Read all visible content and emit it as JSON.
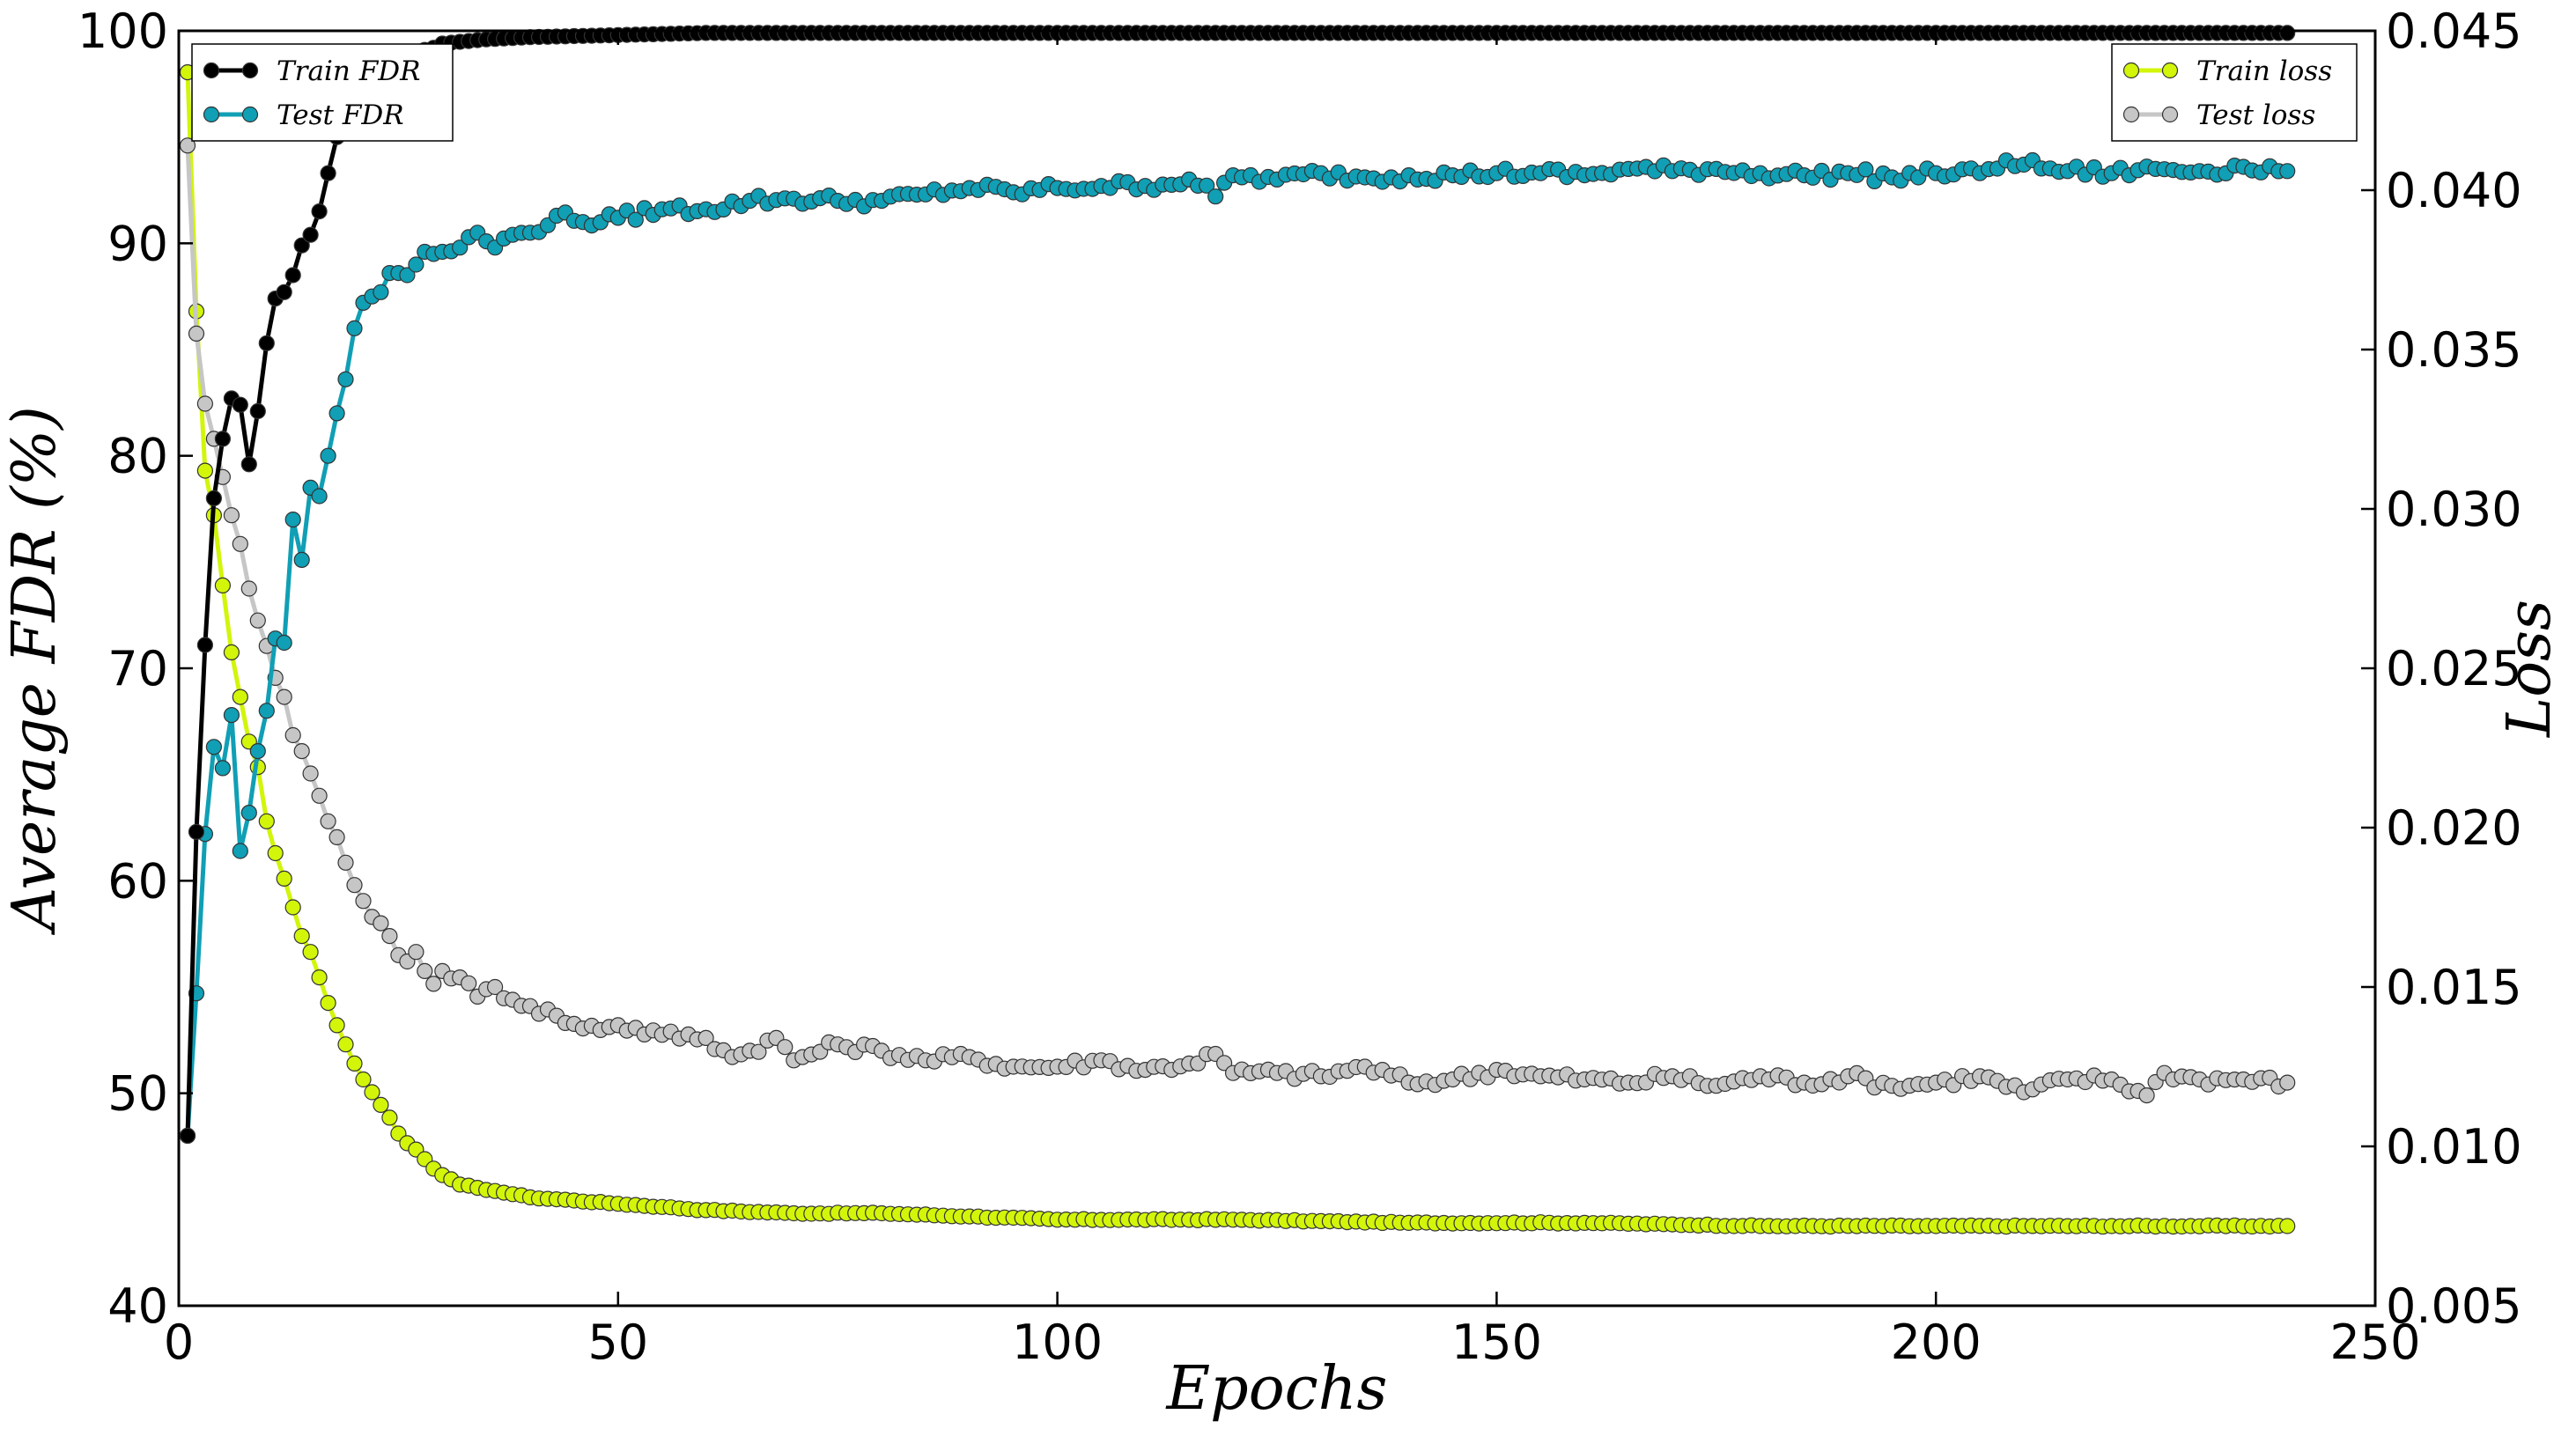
{
  "chart_data": {
    "type": "line",
    "xlabel": "Epochs",
    "ylabel_left": "Average FDR (%)",
    "ylabel_right": "Loss",
    "xlim": [
      0,
      250
    ],
    "ylim_left": [
      40,
      100
    ],
    "ylim_right": [
      0.005,
      0.045
    ],
    "x_ticks": [
      "0",
      "50",
      "100",
      "150",
      "200",
      "250"
    ],
    "y_left_ticks": [
      "40",
      "50",
      "60",
      "70",
      "80",
      "90",
      "100"
    ],
    "y_right_ticks": [
      "0.005",
      "0.010",
      "0.015",
      "0.020",
      "0.025",
      "0.030",
      "0.035",
      "0.040",
      "0.045"
    ],
    "grid": false,
    "legend_left": {
      "position": "top-left",
      "entries": [
        "Train FDR",
        "Test FDR"
      ]
    },
    "legend_right": {
      "position": "top-right",
      "entries": [
        "Train loss",
        "Test loss"
      ]
    },
    "series": [
      {
        "name": "Train FDR",
        "axis": "left",
        "color": "#000000",
        "epochs": [
          1,
          240
        ],
        "points": [
          [
            1,
            48.0
          ],
          [
            2,
            62.3
          ],
          [
            3,
            71.1
          ],
          [
            4,
            78.0
          ],
          [
            5,
            80.8
          ],
          [
            6,
            82.7
          ],
          [
            7,
            82.4
          ],
          [
            8,
            79.6
          ],
          [
            9,
            82.1
          ],
          [
            10,
            85.3
          ],
          [
            11,
            87.4
          ],
          [
            12,
            87.7
          ],
          [
            13,
            88.5
          ],
          [
            14,
            89.9
          ],
          [
            15,
            90.4
          ],
          [
            16,
            91.5
          ],
          [
            17,
            93.3
          ],
          [
            18,
            95.0
          ],
          [
            19,
            95.3
          ],
          [
            20,
            96.4
          ],
          [
            21,
            97.0
          ],
          [
            22,
            97.5
          ],
          [
            23,
            97.8
          ],
          [
            24,
            98.0
          ],
          [
            25,
            98.4
          ],
          [
            26,
            98.6
          ],
          [
            27,
            98.9
          ],
          [
            28,
            99.1
          ],
          [
            29,
            99.2
          ],
          [
            30,
            99.4
          ],
          [
            35,
            99.6
          ],
          [
            40,
            99.7
          ],
          [
            50,
            99.8
          ],
          [
            60,
            99.9
          ],
          [
            240,
            99.9
          ]
        ]
      },
      {
        "name": "Test FDR",
        "axis": "left",
        "color": "#109fb5",
        "points": [
          [
            1,
            48.0
          ],
          [
            2,
            54.7
          ],
          [
            3,
            62.2
          ],
          [
            4,
            66.3
          ],
          [
            5,
            65.3
          ],
          [
            6,
            67.8
          ],
          [
            7,
            61.4
          ],
          [
            8,
            63.2
          ],
          [
            9,
            66.1
          ],
          [
            10,
            68.0
          ],
          [
            11,
            71.4
          ],
          [
            12,
            71.2
          ],
          [
            13,
            77.0
          ],
          [
            14,
            75.1
          ],
          [
            15,
            78.5
          ],
          [
            16,
            78.1
          ],
          [
            17,
            80.0
          ],
          [
            18,
            82.0
          ],
          [
            19,
            83.6
          ],
          [
            20,
            86.0
          ],
          [
            21,
            87.2
          ],
          [
            22,
            87.5
          ],
          [
            23,
            87.7
          ],
          [
            24,
            88.6
          ],
          [
            25,
            88.6
          ],
          [
            26,
            88.5
          ],
          [
            27,
            89.0
          ],
          [
            28,
            89.6
          ],
          [
            29,
            89.5
          ],
          [
            30,
            89.6
          ],
          [
            32,
            89.8
          ],
          [
            34,
            90.5
          ],
          [
            36,
            89.8
          ],
          [
            38,
            90.4
          ],
          [
            40,
            90.5
          ],
          [
            43,
            91.3
          ],
          [
            46,
            91.0
          ],
          [
            50,
            91.2
          ],
          [
            55,
            91.6
          ],
          [
            60,
            91.6
          ],
          [
            65,
            92.0
          ],
          [
            70,
            92.1
          ],
          [
            75,
            92.0
          ],
          [
            80,
            92.0
          ],
          [
            85,
            92.3
          ],
          [
            90,
            92.6
          ],
          [
            95,
            92.4
          ],
          [
            100,
            92.6
          ],
          [
            105,
            92.7
          ],
          [
            110,
            92.7
          ],
          [
            115,
            93.0
          ],
          [
            118,
            92.2
          ],
          [
            120,
            93.2
          ],
          [
            125,
            93.0
          ],
          [
            130,
            93.3
          ],
          [
            135,
            93.1
          ],
          [
            140,
            93.2
          ],
          [
            145,
            93.2
          ],
          [
            150,
            93.3
          ],
          [
            155,
            93.3
          ],
          [
            160,
            93.2
          ],
          [
            165,
            93.5
          ],
          [
            170,
            93.4
          ],
          [
            175,
            93.5
          ],
          [
            180,
            93.3
          ],
          [
            185,
            93.2
          ],
          [
            190,
            93.3
          ],
          [
            195,
            93.1
          ],
          [
            200,
            93.3
          ],
          [
            205,
            93.3
          ],
          [
            208,
            93.9
          ],
          [
            210,
            93.7
          ],
          [
            215,
            93.4
          ],
          [
            220,
            93.3
          ],
          [
            225,
            93.5
          ],
          [
            230,
            93.4
          ],
          [
            235,
            93.6
          ],
          [
            240,
            93.4
          ]
        ]
      },
      {
        "name": "Train loss",
        "axis": "right",
        "color": "#d2f50a",
        "points": [
          [
            1,
            0.0437
          ],
          [
            2,
            0.0362
          ],
          [
            3,
            0.0312
          ],
          [
            4,
            0.0298
          ],
          [
            5,
            0.0276
          ],
          [
            6,
            0.0255
          ],
          [
            7,
            0.0241
          ],
          [
            8,
            0.0227
          ],
          [
            9,
            0.0219
          ],
          [
            10,
            0.0202
          ],
          [
            11,
            0.0192
          ],
          [
            12,
            0.0184
          ],
          [
            13,
            0.0175
          ],
          [
            14,
            0.0166
          ],
          [
            15,
            0.0161
          ],
          [
            16,
            0.0153
          ],
          [
            17,
            0.0145
          ],
          [
            18,
            0.0138
          ],
          [
            19,
            0.0132
          ],
          [
            20,
            0.0126
          ],
          [
            21,
            0.0121
          ],
          [
            22,
            0.0117
          ],
          [
            23,
            0.0113
          ],
          [
            24,
            0.0109
          ],
          [
            25,
            0.0104
          ],
          [
            26,
            0.0101
          ],
          [
            27,
            0.0099
          ],
          [
            28,
            0.0096
          ],
          [
            29,
            0.0093
          ],
          [
            30,
            0.0091
          ],
          [
            32,
            0.0088
          ],
          [
            34,
            0.0087
          ],
          [
            36,
            0.0086
          ],
          [
            38,
            0.0085
          ],
          [
            40,
            0.0084
          ],
          [
            45,
            0.0083
          ],
          [
            50,
            0.0082
          ],
          [
            55,
            0.0081
          ],
          [
            60,
            0.008
          ],
          [
            70,
            0.0079
          ],
          [
            80,
            0.0079
          ],
          [
            90,
            0.0078
          ],
          [
            100,
            0.0077
          ],
          [
            120,
            0.0077
          ],
          [
            140,
            0.0076
          ],
          [
            160,
            0.0076
          ],
          [
            180,
            0.0075
          ],
          [
            200,
            0.0075
          ],
          [
            220,
            0.0075
          ],
          [
            240,
            0.0075
          ]
        ]
      },
      {
        "name": "Test loss",
        "axis": "right",
        "color": "#c6c6c6",
        "points": [
          [
            1,
            0.0414
          ],
          [
            2,
            0.0355
          ],
          [
            3,
            0.0333
          ],
          [
            4,
            0.0322
          ],
          [
            5,
            0.031
          ],
          [
            6,
            0.0298
          ],
          [
            7,
            0.0289
          ],
          [
            8,
            0.0275
          ],
          [
            9,
            0.0265
          ],
          [
            10,
            0.0257
          ],
          [
            11,
            0.0247
          ],
          [
            12,
            0.0241
          ],
          [
            13,
            0.0229
          ],
          [
            14,
            0.0224
          ],
          [
            15,
            0.0217
          ],
          [
            16,
            0.021
          ],
          [
            17,
            0.0202
          ],
          [
            18,
            0.0197
          ],
          [
            19,
            0.0189
          ],
          [
            20,
            0.0182
          ],
          [
            21,
            0.0177
          ],
          [
            22,
            0.0172
          ],
          [
            23,
            0.017
          ],
          [
            24,
            0.0166
          ],
          [
            25,
            0.016
          ],
          [
            26,
            0.0158
          ],
          [
            27,
            0.0161
          ],
          [
            28,
            0.0155
          ],
          [
            29,
            0.0151
          ],
          [
            30,
            0.0155
          ],
          [
            32,
            0.0153
          ],
          [
            34,
            0.0147
          ],
          [
            36,
            0.015
          ],
          [
            38,
            0.0146
          ],
          [
            40,
            0.0144
          ],
          [
            43,
            0.0141
          ],
          [
            46,
            0.0137
          ],
          [
            50,
            0.0138
          ],
          [
            55,
            0.0135
          ],
          [
            60,
            0.0134
          ],
          [
            63,
            0.0128
          ],
          [
            65,
            0.013
          ],
          [
            68,
            0.0134
          ],
          [
            70,
            0.0127
          ],
          [
            75,
            0.0132
          ],
          [
            80,
            0.013
          ],
          [
            85,
            0.0127
          ],
          [
            90,
            0.0128
          ],
          [
            95,
            0.0125
          ],
          [
            100,
            0.0125
          ],
          [
            105,
            0.0127
          ],
          [
            110,
            0.0124
          ],
          [
            115,
            0.0126
          ],
          [
            118,
            0.0129
          ],
          [
            120,
            0.0123
          ],
          [
            125,
            0.0123
          ],
          [
            130,
            0.0122
          ],
          [
            135,
            0.0125
          ],
          [
            140,
            0.012
          ],
          [
            145,
            0.0121
          ],
          [
            150,
            0.0124
          ],
          [
            155,
            0.0122
          ],
          [
            160,
            0.0121
          ],
          [
            165,
            0.012
          ],
          [
            170,
            0.0122
          ],
          [
            175,
            0.0119
          ],
          [
            180,
            0.0122
          ],
          [
            185,
            0.012
          ],
          [
            190,
            0.0122
          ],
          [
            195,
            0.0119
          ],
          [
            200,
            0.012
          ],
          [
            205,
            0.0122
          ],
          [
            210,
            0.0117
          ],
          [
            215,
            0.0121
          ],
          [
            220,
            0.0121
          ],
          [
            224,
            0.0116
          ],
          [
            226,
            0.0123
          ],
          [
            230,
            0.0121
          ],
          [
            235,
            0.0121
          ],
          [
            240,
            0.012
          ]
        ]
      }
    ]
  }
}
